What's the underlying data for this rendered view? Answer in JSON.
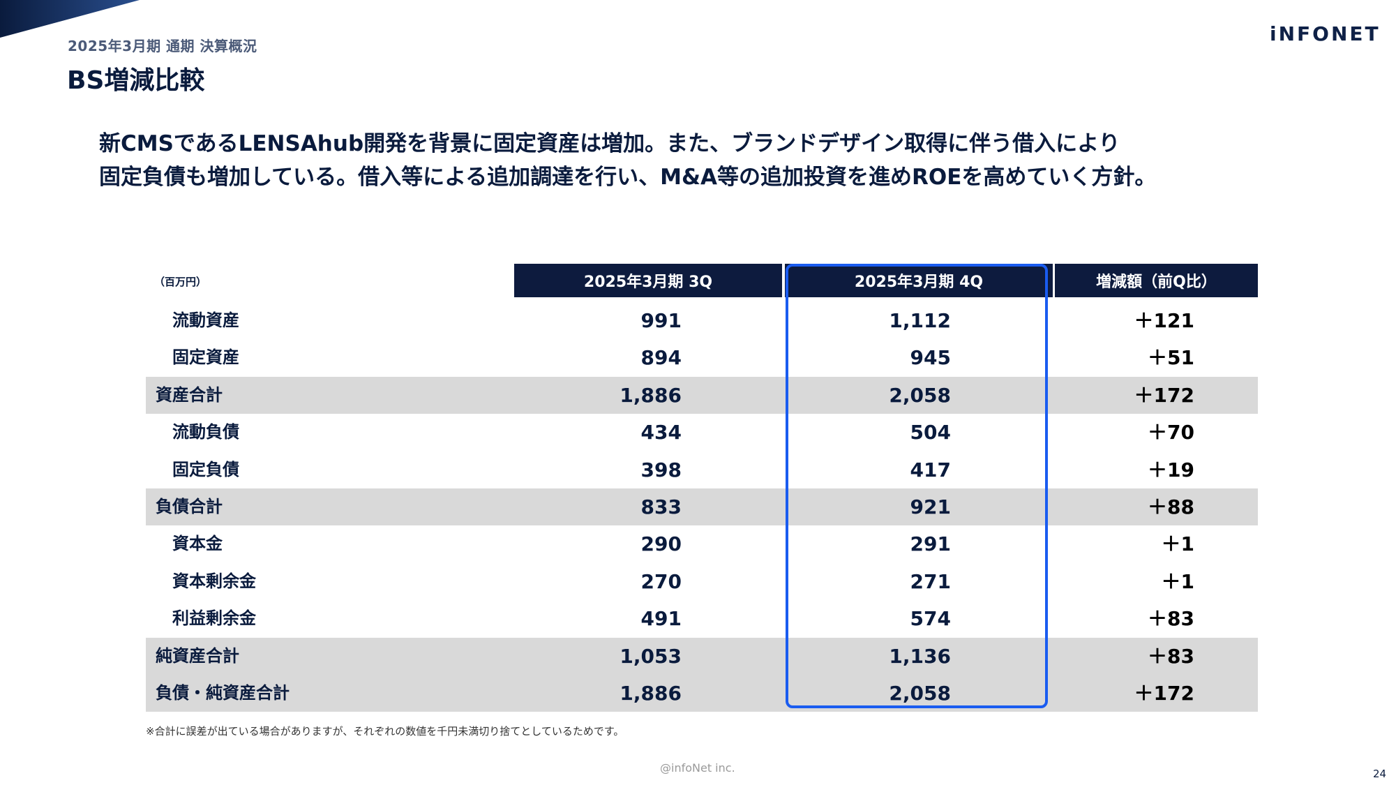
{
  "header": {
    "subtitle": "2025年3月期 通期 決算概況",
    "title": "BS増減比較",
    "logo": "iNFONET"
  },
  "lead": {
    "line1": "新CMSであるLENSAhub開発を背景に固定資産は増加。また、ブランドデザイン取得に伴う借入により",
    "line2": "固定負債も増加している。借入等による追加調達を行い、M&A等の追加投資を進めROEを高めていく方針。"
  },
  "table": {
    "unit": "（百万円）",
    "columns": [
      "2025年3月期 3Q",
      "2025年3月期 4Q",
      "増減額（前Q比）"
    ],
    "rows": [
      {
        "label": "流動資産",
        "q3": "991",
        "q4": "1,112",
        "diff": "＋121"
      },
      {
        "label": "固定資産",
        "q3": "894",
        "q4": "945",
        "diff": "＋51"
      },
      {
        "label": "資産合計",
        "q3": "1,886",
        "q4": "2,058",
        "diff": "＋172"
      },
      {
        "label": "流動負債",
        "q3": "434",
        "q4": "504",
        "diff": "＋70"
      },
      {
        "label": "固定負債",
        "q3": "398",
        "q4": "417",
        "diff": "＋19"
      },
      {
        "label": "負債合計",
        "q3": "833",
        "q4": "921",
        "diff": "＋88"
      },
      {
        "label": "資本金",
        "q3": "290",
        "q4": "291",
        "diff": "＋1"
      },
      {
        "label": "資本剰余金",
        "q3": "270",
        "q4": "271",
        "diff": "＋1"
      },
      {
        "label": "利益剰余金",
        "q3": "491",
        "q4": "574",
        "diff": "＋83"
      },
      {
        "label": "純資産合計",
        "q3": "1,053",
        "q4": "1,136",
        "diff": "＋83"
      },
      {
        "label": "負債・純資産合計",
        "q3": "1,886",
        "q4": "2,058",
        "diff": "＋172"
      }
    ]
  },
  "note": "※合計に誤差が出ている場合がありますが、それぞれの数値を千円未満切り捨てとしているためです。",
  "footer": {
    "copyright": "@infoNet inc.",
    "page_number": "24"
  },
  "colors": {
    "navy": "#0d1b3e",
    "highlight": "#1a5cf0",
    "total_row": "#d9d9d9"
  }
}
